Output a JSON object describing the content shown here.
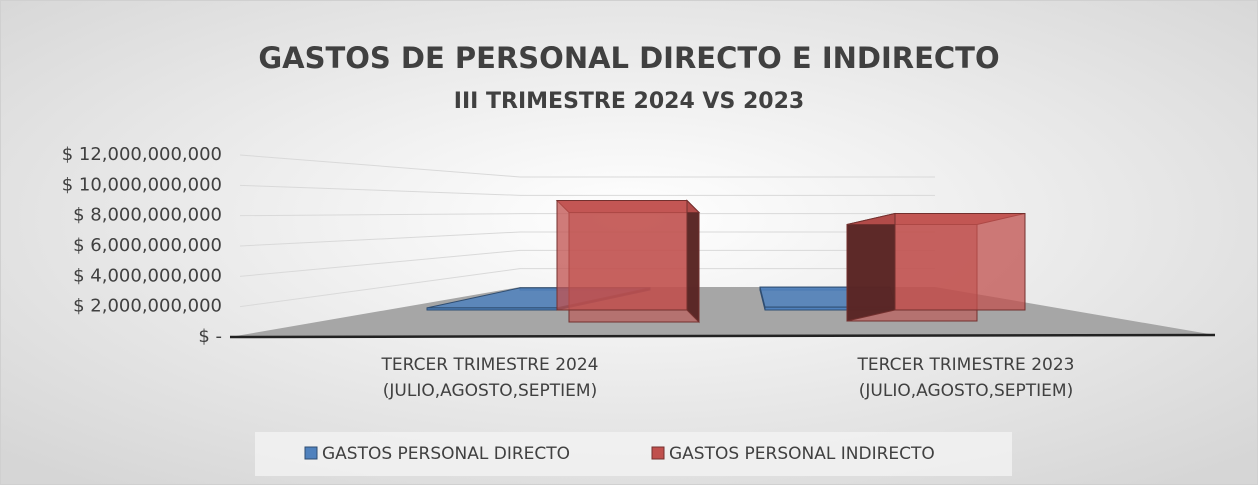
{
  "chart_data": {
    "type": "bar3d",
    "title": "GASTOS DE PERSONAL DIRECTO E INDIRECTO",
    "subtitle": "III TRIMESTRE 2024 VS 2023",
    "categories": [
      "TERCER TRIMESTRE 2024 (JULIO,AGOSTO,SEPTIEM)",
      "TERCER TRIMESTRE 2023 (JULIO,AGOSTO,SEPTIEM)"
    ],
    "series": [
      {
        "name": "GASTOS PERSONAL DIRECTO",
        "color": "#4f81bd",
        "values": [
          150000000,
          200000000
        ]
      },
      {
        "name": "GASTOS PERSONAL INDIRECTO",
        "color": "#c0504d",
        "values": [
          7600000000,
          6700000000
        ]
      }
    ],
    "ylim": [
      0,
      12000000000
    ],
    "yticks": [
      {
        "value": 0,
        "label": "$ -"
      },
      {
        "value": 2000000000,
        "label": "$ 2,000,000,000"
      },
      {
        "value": 4000000000,
        "label": "$ 4,000,000,000"
      },
      {
        "value": 6000000000,
        "label": "$ 6,000,000,000"
      },
      {
        "value": 8000000000,
        "label": "$ 8,000,000,000"
      },
      {
        "value": 10000000000,
        "label": "$ 10,000,000,000"
      },
      {
        "value": 12000000000,
        "label": "$ 12,000,000,000"
      }
    ],
    "grid": true,
    "legend": "bottom"
  }
}
